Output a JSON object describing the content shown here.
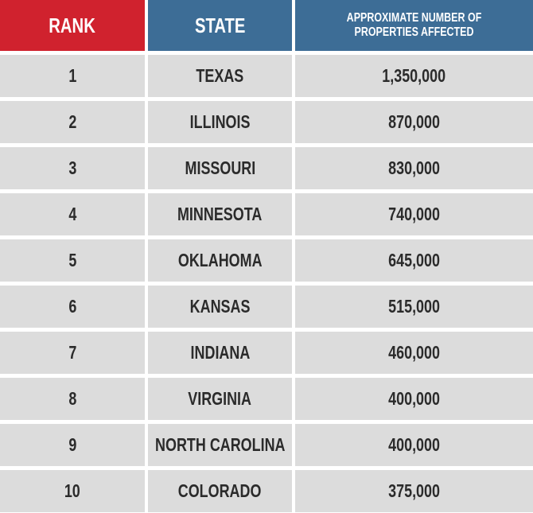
{
  "table": {
    "header": [
      "RANK",
      "STATE",
      "APPROXIMATE NUMBER OF PROPERTIES AFFECTED"
    ],
    "rows": [
      [
        "1",
        "TEXAS",
        "1,350,000"
      ],
      [
        "2",
        "ILLINOIS",
        "870,000"
      ],
      [
        "3",
        "MISSOURI",
        "830,000"
      ],
      [
        "4",
        "MINNESOTA",
        "740,000"
      ],
      [
        "5",
        "OKLAHOMA",
        "645,000"
      ],
      [
        "6",
        "KANSAS",
        "515,000"
      ],
      [
        "7",
        "INDIANA",
        "460,000"
      ],
      [
        "8",
        "VIRGINIA",
        "400,000"
      ],
      [
        "9",
        "NORTH CAROLINA",
        "400,000"
      ],
      [
        "10",
        "COLORADO",
        "375,000"
      ]
    ]
  }
}
